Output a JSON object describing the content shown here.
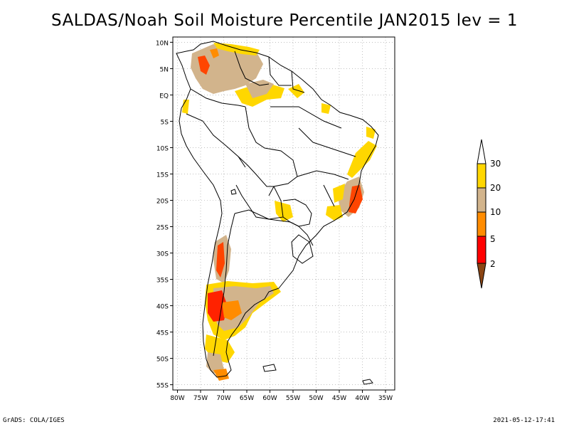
{
  "title": "SALDAS/Noah Soil Moisture Percentile JAN2015 lev = 1",
  "footer": {
    "left": "GrADS: COLA/IGES",
    "right": "2021-05-12-17:41"
  },
  "map": {
    "lat_labels": [
      "10N",
      "5N",
      "EQ",
      "5S",
      "10S",
      "15S",
      "20S",
      "25S",
      "30S",
      "35S",
      "40S",
      "45S",
      "50S",
      "55S"
    ],
    "lon_labels": [
      "80W",
      "75W",
      "70W",
      "65W",
      "60W",
      "55W",
      "50W",
      "45W",
      "40W",
      "35W"
    ],
    "grid": true
  },
  "legend": {
    "labels": [
      "30",
      "20",
      "10",
      "5",
      "2"
    ],
    "colors": {
      "above30": "#ffffff",
      "20-30": "#ffd700",
      "10-20": "#d2b48c",
      "5-10": "#ff8c00",
      "2-5": "#ff0000",
      "below2": "#8b4513"
    }
  },
  "chart_data": {
    "type": "heatmap",
    "title": "SALDAS/Noah Soil Moisture Percentile JAN2015 lev = 1",
    "xlim": [
      -81,
      -33
    ],
    "ylim": [
      -56,
      11
    ],
    "bins": [
      {
        "range": "<2",
        "color": "#8b4513"
      },
      {
        "range": "2-5",
        "color": "#ff0000"
      },
      {
        "range": "5-10",
        "color": "#ff8c00"
      },
      {
        "range": "10-20",
        "color": "#d2b48c"
      },
      {
        "range": "20-30",
        "color": "#ffd700"
      },
      {
        "range": ">30",
        "color": "#ffffff"
      }
    ]
  }
}
